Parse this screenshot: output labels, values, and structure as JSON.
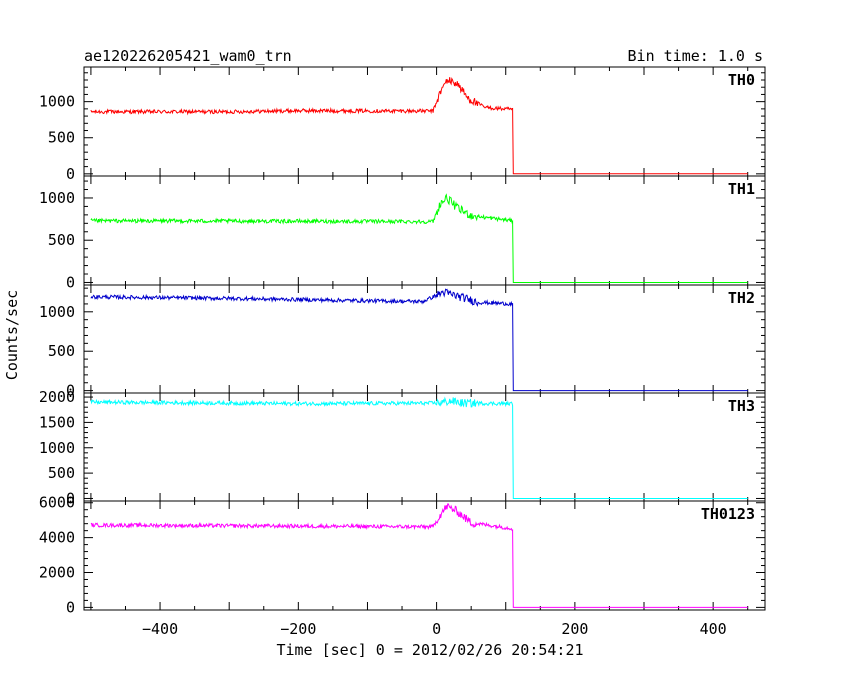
{
  "header": {
    "title": "ae120226205421_wam0_trn",
    "bin_time": "Bin time: 1.0 s"
  },
  "axes": {
    "xlabel": "Time [sec] 0 = 2012/02/26 20:54:21",
    "ylabel": "Counts/sec",
    "xlim": [
      -510,
      475
    ],
    "x_ticks": [
      -400,
      -200,
      0,
      200,
      400
    ]
  },
  "chart_data": {
    "type": "line",
    "x_range": [
      -500,
      450
    ],
    "series": [
      {
        "name": "TH0",
        "color": "#ff0000",
        "ylim": [
          -30,
          1480
        ],
        "yticks": [
          0,
          500,
          1000
        ],
        "profile": [
          [
            -500,
            860
          ],
          [
            -300,
            860
          ],
          [
            -200,
            875
          ],
          [
            -5,
            870
          ],
          [
            5,
            1120
          ],
          [
            15,
            1300
          ],
          [
            30,
            1250
          ],
          [
            45,
            1050
          ],
          [
            70,
            920
          ],
          [
            110,
            890
          ],
          [
            111,
            0
          ],
          [
            450,
            0
          ]
        ]
      },
      {
        "name": "TH1",
        "color": "#00ff00",
        "ylim": [
          -30,
          1260
        ],
        "yticks": [
          0,
          500,
          1000
        ],
        "profile": [
          [
            -500,
            730
          ],
          [
            -200,
            725
          ],
          [
            -5,
            720
          ],
          [
            5,
            930
          ],
          [
            15,
            1000
          ],
          [
            30,
            880
          ],
          [
            50,
            790
          ],
          [
            110,
            730
          ],
          [
            111,
            0
          ],
          [
            450,
            0
          ]
        ]
      },
      {
        "name": "TH2",
        "color": "#0000cc",
        "ylim": [
          -30,
          1340
        ],
        "yticks": [
          0,
          500,
          1000
        ],
        "profile": [
          [
            -500,
            1190
          ],
          [
            -300,
            1170
          ],
          [
            -100,
            1140
          ],
          [
            -20,
            1130
          ],
          [
            10,
            1250
          ],
          [
            30,
            1200
          ],
          [
            60,
            1120
          ],
          [
            110,
            1100
          ],
          [
            111,
            0
          ],
          [
            450,
            0
          ]
        ]
      },
      {
        "name": "TH3",
        "color": "#00ffff",
        "ylim": [
          -50,
          2080
        ],
        "yticks": [
          0,
          500,
          1000,
          1500,
          2000
        ],
        "profile": [
          [
            -500,
            1900
          ],
          [
            -200,
            1870
          ],
          [
            0,
            1880
          ],
          [
            20,
            1920
          ],
          [
            40,
            1880
          ],
          [
            110,
            1870
          ],
          [
            111,
            0
          ],
          [
            450,
            0
          ]
        ]
      },
      {
        "name": "TH0123",
        "color": "#ff00ff",
        "ylim": [
          -150,
          6100
        ],
        "yticks": [
          0,
          2000,
          4000,
          6000
        ],
        "profile": [
          [
            -500,
            4720
          ],
          [
            -200,
            4660
          ],
          [
            -5,
            4620
          ],
          [
            5,
            5300
          ],
          [
            15,
            5800
          ],
          [
            30,
            5500
          ],
          [
            50,
            4850
          ],
          [
            110,
            4520
          ],
          [
            111,
            0
          ],
          [
            450,
            0
          ]
        ]
      }
    ]
  }
}
